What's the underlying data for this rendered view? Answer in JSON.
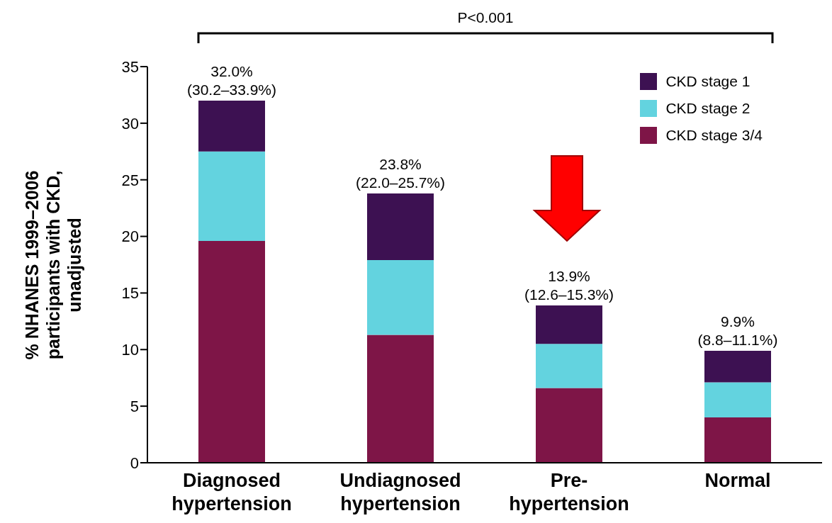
{
  "chart_data": {
    "type": "bar",
    "stacked": true,
    "categories": [
      "Diagnosed\nhypertension",
      "Undiagnosed\nhypertension",
      "Pre-\nhypertension",
      "Normal"
    ],
    "series": [
      {
        "name": "CKD stage 3/4",
        "color": "#7e1547",
        "values": [
          19.6,
          11.3,
          6.6,
          4.0
        ]
      },
      {
        "name": "CKD stage 2",
        "color": "#63d3df",
        "values": [
          7.9,
          6.6,
          3.9,
          3.1
        ]
      },
      {
        "name": "CKD stage 1",
        "color": "#3d1152",
        "values": [
          4.5,
          5.9,
          3.4,
          2.8
        ]
      }
    ],
    "totals": [
      "32.0%\n(30.2–33.9%)",
      "23.8%\n(22.0–25.7%)",
      "13.9%\n(12.6–15.3%)",
      "9.9%\n(8.8–11.1%)"
    ],
    "ylabel": "% NHANES 1999–2006\nparticipants with CKD,\nunadjusted",
    "ylim": [
      0,
      35
    ],
    "yticks": [
      0,
      5,
      10,
      15,
      20,
      25,
      30,
      35
    ],
    "annotations": [
      "P<0.001"
    ],
    "legend": "top right",
    "grid": false
  }
}
